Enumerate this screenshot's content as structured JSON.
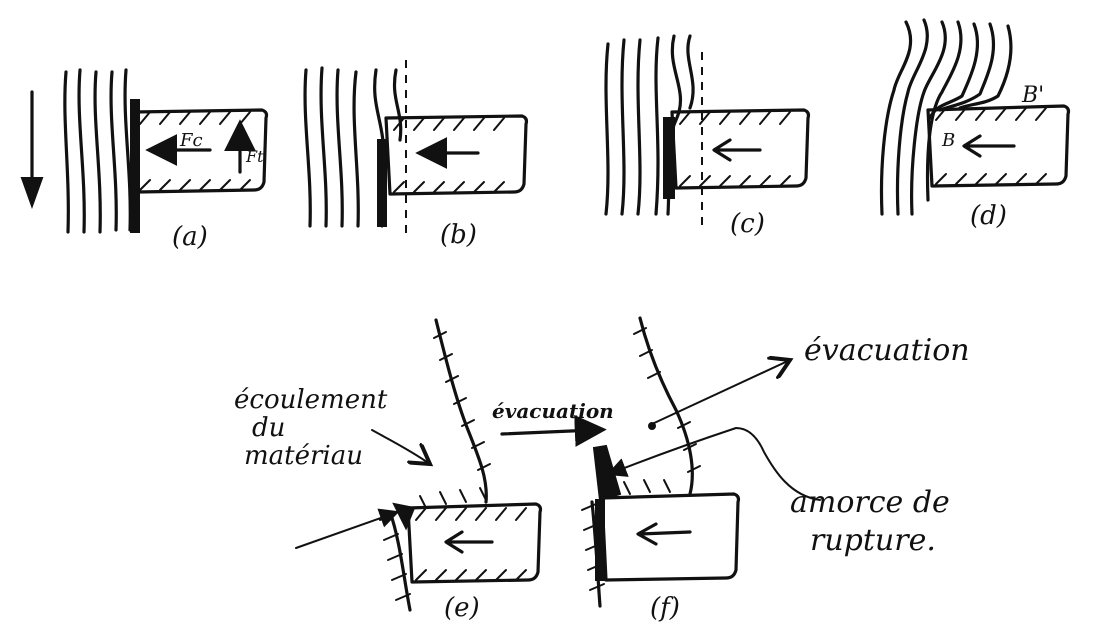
{
  "panels": {
    "a": "(a)",
    "b": "(b)",
    "c": "(c)",
    "d": "(d)",
    "e": "(e)",
    "f": "(f)"
  },
  "tool_labels": {
    "fc": "Fc",
    "ft": "Ft",
    "b": "B",
    "b_prime": "B'"
  },
  "annotations": {
    "ecoulement_line1": "écoulement",
    "ecoulement_line2": "du",
    "ecoulement_line3": "matériau",
    "evacuation_center": "évacuation",
    "evacuation_right": "évacuation",
    "amorce_line1": "amorce de",
    "amorce_line2": "rupture."
  }
}
